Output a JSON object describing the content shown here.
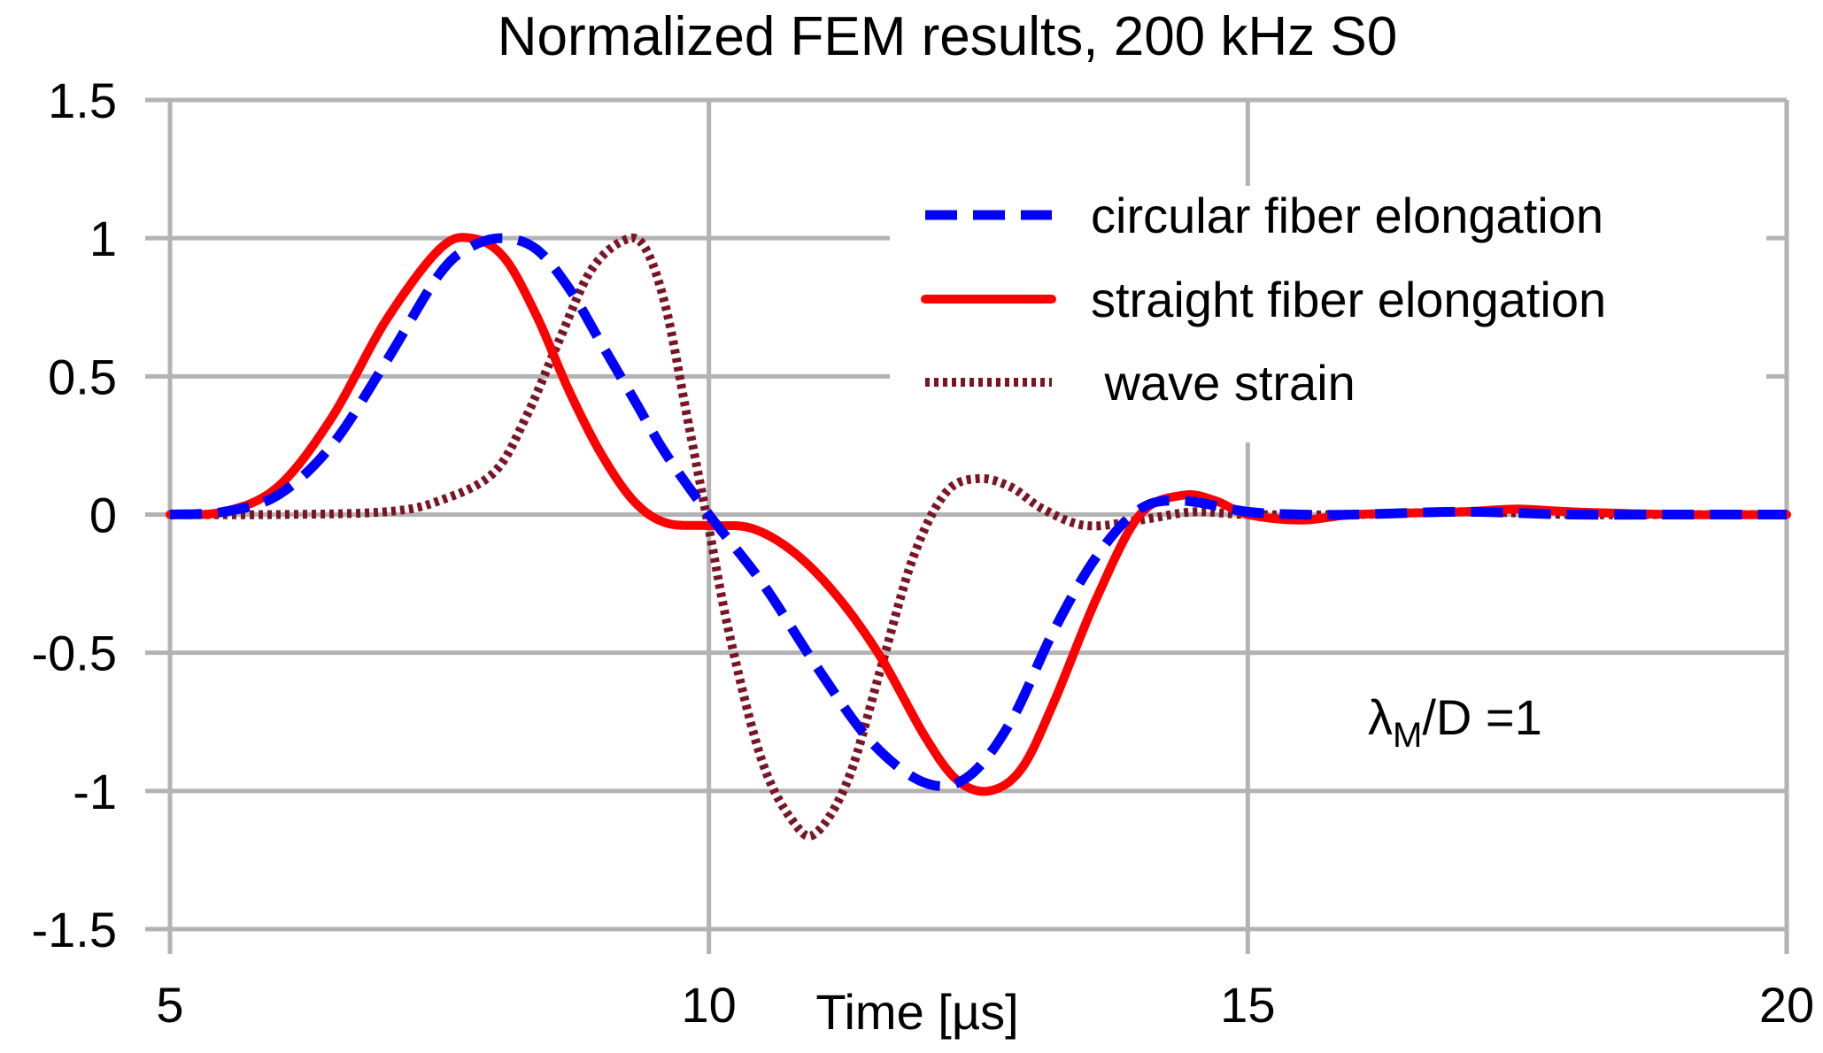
{
  "chart_data": {
    "type": "line",
    "title": "Normalized FEM results, 200 kHz S0",
    "xlabel": "Time [µs]",
    "ylabel": "",
    "xlim": [
      5,
      20
    ],
    "ylim": [
      -1.5,
      1.5
    ],
    "xticks": [
      5,
      10,
      15,
      20
    ],
    "xtick_labels": [
      "5",
      "10",
      "15",
      "20"
    ],
    "yticks": [
      1.5,
      1,
      0.5,
      0,
      -0.5,
      -1,
      -1.5
    ],
    "ytick_labels": [
      "1.5",
      "1",
      "0.5",
      "0",
      "-0.5",
      "-1",
      "-1.5"
    ],
    "grid": true,
    "legend_position": "top-right",
    "annotation": {
      "main": "λ",
      "sub": "M",
      "rest": "/D =1"
    },
    "series": [
      {
        "name": "circular fiber elongation",
        "legend_label": "circular fiber elongation",
        "color": "#0000ff",
        "style": "dashed",
        "x": [
          5,
          5.5,
          6,
          6.5,
          7,
          7.5,
          7.8,
          8.1,
          8.4,
          8.7,
          9,
          9.3,
          9.6,
          10,
          10.5,
          11,
          11.5,
          12,
          12.4,
          12.8,
          13.2,
          13.6,
          14,
          14.4,
          15,
          15.5,
          16,
          17,
          18,
          19,
          20
        ],
        "y": [
          0,
          0.01,
          0.07,
          0.25,
          0.55,
          0.87,
          0.97,
          1.0,
          0.96,
          0.82,
          0.62,
          0.42,
          0.22,
          0.0,
          -0.25,
          -0.55,
          -0.82,
          -0.97,
          -0.95,
          -0.75,
          -0.42,
          -0.15,
          0.02,
          0.05,
          0.01,
          0.0,
          0.0,
          0.01,
          0.0,
          0.0,
          0.0
        ]
      },
      {
        "name": "straight fiber elongation",
        "legend_label": "straight fiber elongation",
        "color": "#ff0000",
        "style": "solid",
        "x": [
          5,
          5.5,
          6,
          6.5,
          7,
          7.5,
          7.8,
          8.1,
          8.4,
          8.7,
          9,
          9.3,
          9.6,
          10,
          10.4,
          10.8,
          11.2,
          11.6,
          12,
          12.3,
          12.6,
          12.9,
          13.2,
          13.6,
          14,
          14.4,
          14.7,
          15,
          15.5,
          16,
          17,
          17.5,
          18,
          19,
          20
        ],
        "y": [
          0,
          0.01,
          0.1,
          0.35,
          0.7,
          0.96,
          1.0,
          0.93,
          0.72,
          0.45,
          0.22,
          0.05,
          -0.03,
          -0.04,
          -0.05,
          -0.14,
          -0.3,
          -0.52,
          -0.8,
          -0.96,
          -1.0,
          -0.92,
          -0.68,
          -0.3,
          0.0,
          0.07,
          0.05,
          0.0,
          -0.02,
          0.0,
          0.01,
          0.02,
          0.01,
          0.0,
          0.0
        ]
      },
      {
        "name": "wave strain",
        "legend_label": " wave strain",
        "color": "#7b1424",
        "style": "dotted",
        "x": [
          5,
          6,
          7,
          7.5,
          8,
          8.3,
          8.6,
          8.9,
          9.2,
          9.4,
          9.6,
          9.8,
          10,
          10.2,
          10.5,
          10.8,
          11,
          11.3,
          11.6,
          11.9,
          12.2,
          12.5,
          12.8,
          13.1,
          13.5,
          14,
          14.5,
          15,
          16,
          17,
          18,
          19,
          20
        ],
        "y": [
          0,
          0.0,
          0.01,
          0.05,
          0.15,
          0.35,
          0.62,
          0.88,
          0.99,
          0.97,
          0.75,
          0.35,
          -0.05,
          -0.45,
          -0.9,
          -1.12,
          -1.15,
          -0.95,
          -0.55,
          -0.15,
          0.08,
          0.13,
          0.1,
          0.02,
          -0.04,
          -0.02,
          0.01,
          0.0,
          0.0,
          0.01,
          0.0,
          0.0,
          0.0
        ]
      }
    ]
  }
}
